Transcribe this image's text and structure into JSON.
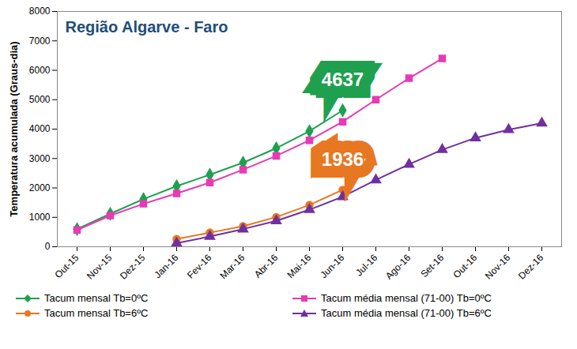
{
  "chart_data": {
    "type": "line",
    "title": "Região Algarve - Faro",
    "y_label": "Temperatura acumulada (Graus-dia)",
    "categories": [
      "Out-15",
      "Nov-15",
      "Dez-15",
      "Jan-16",
      "Fev-16",
      "Mar-16",
      "Abr-16",
      "Mai-16",
      "Jun-16",
      "Jul-16",
      "Ago-16",
      "Set-16",
      "Out-16",
      "Nov-16",
      "Dez-16"
    ],
    "series": [
      {
        "name": "Tacum mensal Tb=0ºC",
        "color": "#1fa04f",
        "marker": "diamond",
        "values": [
          600,
          1120,
          1620,
          2060,
          2450,
          2860,
          3350,
          3930,
          4637,
          null,
          null,
          null,
          null,
          null,
          null
        ]
      },
      {
        "name": "Tacum média mensal (71-00) Tb=0ºC",
        "color": "#e83ab4",
        "marker": "square",
        "values": [
          570,
          1060,
          1460,
          1810,
          2180,
          2620,
          3090,
          3620,
          4250,
          5000,
          5730,
          6400,
          null,
          null,
          null
        ]
      },
      {
        "name": "Tacum mensal Tb=6ºC",
        "color": "#e87722",
        "marker": "circle",
        "values": [
          null,
          null,
          null,
          260,
          480,
          700,
          1010,
          1420,
          1936,
          null,
          null,
          null,
          null,
          null,
          null
        ]
      },
      {
        "name": "Tacum média mensal (71-00) Tb=6ºC",
        "color": "#7030a0",
        "marker": "triangle",
        "values": [
          null,
          null,
          null,
          120,
          350,
          600,
          880,
          1260,
          1700,
          2270,
          2800,
          3300,
          3700,
          3980,
          4200
        ]
      }
    ],
    "annotations": [
      {
        "text": "4637",
        "series": "Tacum mensal Tb=0ºC"
      },
      {
        "text": "1936",
        "series": "Tacum mensal Tb=6ºC"
      }
    ],
    "ylim": [
      0,
      8000
    ],
    "yticks": [
      0,
      1000,
      2000,
      3000,
      4000,
      5000,
      6000,
      7000,
      8000
    ],
    "grid": false,
    "legend": "bottom"
  }
}
